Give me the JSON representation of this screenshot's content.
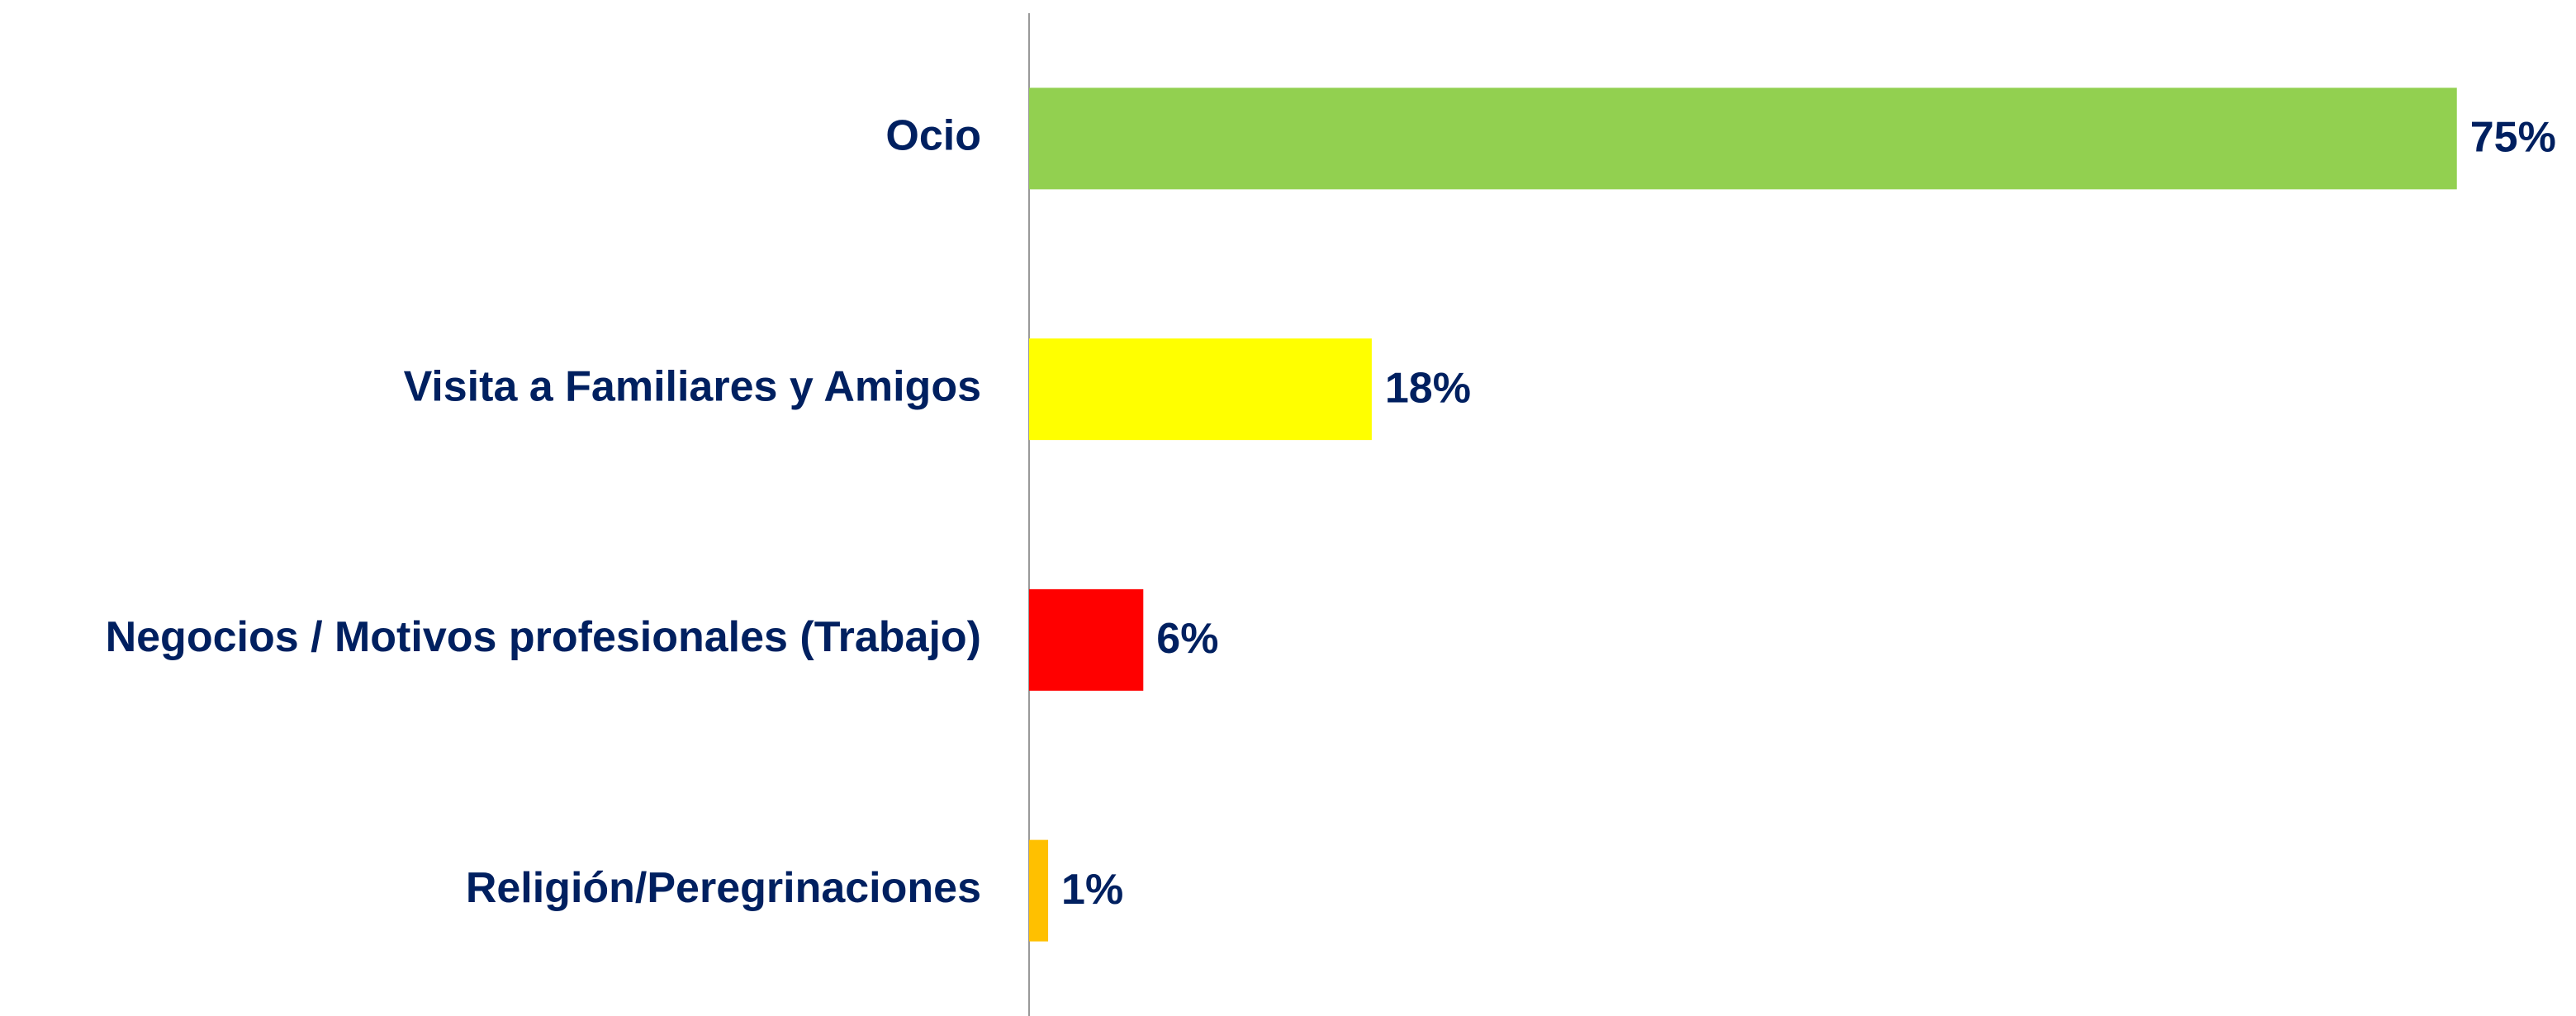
{
  "chart_data": {
    "type": "bar",
    "orientation": "horizontal",
    "categories": [
      "Ocio",
      "Visita a Familiares y Amigos",
      "Negocios / Motivos profesionales (Trabajo)",
      "Religión/Peregrinaciones"
    ],
    "values": [
      75,
      18,
      6,
      1
    ],
    "value_labels": [
      "75%",
      "18%",
      "6%",
      "1%"
    ],
    "colors": [
      "#92d050",
      "#ffff00",
      "#ff0000",
      "#ffc000"
    ]
  }
}
